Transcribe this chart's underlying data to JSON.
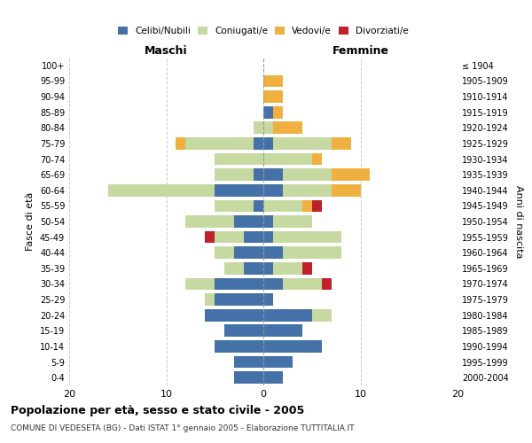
{
  "age_groups": [
    "0-4",
    "5-9",
    "10-14",
    "15-19",
    "20-24",
    "25-29",
    "30-34",
    "35-39",
    "40-44",
    "45-49",
    "50-54",
    "55-59",
    "60-64",
    "65-69",
    "70-74",
    "75-79",
    "80-84",
    "85-89",
    "90-94",
    "95-99",
    "100+"
  ],
  "birth_years": [
    "2000-2004",
    "1995-1999",
    "1990-1994",
    "1985-1989",
    "1980-1984",
    "1975-1979",
    "1970-1974",
    "1965-1969",
    "1960-1964",
    "1955-1959",
    "1950-1954",
    "1945-1949",
    "1940-1944",
    "1935-1939",
    "1930-1934",
    "1925-1929",
    "1920-1924",
    "1915-1919",
    "1910-1914",
    "1905-1909",
    "≤ 1904"
  ],
  "maschi": {
    "celibi": [
      3,
      3,
      5,
      4,
      6,
      5,
      5,
      2,
      3,
      2,
      3,
      1,
      5,
      1,
      0,
      1,
      0,
      0,
      0,
      0,
      0
    ],
    "coniugati": [
      0,
      0,
      0,
      0,
      0,
      1,
      3,
      2,
      2,
      3,
      5,
      4,
      11,
      4,
      5,
      7,
      1,
      0,
      0,
      0,
      0
    ],
    "vedovi": [
      0,
      0,
      0,
      0,
      0,
      0,
      0,
      0,
      0,
      0,
      0,
      0,
      0,
      0,
      0,
      1,
      0,
      0,
      0,
      0,
      0
    ],
    "divorziati": [
      0,
      0,
      0,
      0,
      0,
      0,
      0,
      0,
      0,
      1,
      0,
      0,
      0,
      0,
      0,
      0,
      0,
      0,
      0,
      0,
      0
    ]
  },
  "femmine": {
    "nubili": [
      2,
      3,
      6,
      4,
      5,
      1,
      2,
      1,
      2,
      1,
      1,
      0,
      2,
      2,
      0,
      1,
      0,
      1,
      0,
      0,
      0
    ],
    "coniugate": [
      0,
      0,
      0,
      0,
      2,
      0,
      4,
      3,
      6,
      7,
      4,
      4,
      5,
      5,
      5,
      6,
      1,
      0,
      0,
      0,
      0
    ],
    "vedove": [
      0,
      0,
      0,
      0,
      0,
      0,
      0,
      0,
      0,
      0,
      0,
      1,
      3,
      4,
      1,
      2,
      3,
      1,
      2,
      2,
      0
    ],
    "divorziate": [
      0,
      0,
      0,
      0,
      0,
      0,
      1,
      1,
      0,
      0,
      0,
      1,
      0,
      0,
      0,
      0,
      0,
      0,
      0,
      0,
      0
    ]
  },
  "colors": {
    "celibi_nubili": "#4472a8",
    "coniugati_e": "#c5d9a0",
    "vedovi_e": "#f0b040",
    "divorziati_e": "#c0202a"
  },
  "xlim": 20,
  "title": "Popolazione per età, sesso e stato civile - 2005",
  "subtitle": "COMUNE DI VEDESETA (BG) - Dati ISTAT 1° gennaio 2005 - Elaborazione TUTTITALIA.IT",
  "ylabel_left": "Fasce di età",
  "ylabel_right": "Anni di nascita",
  "xlabel_maschi": "Maschi",
  "xlabel_femmine": "Femmine",
  "bg_color": "#ffffff",
  "grid_color": "#cccccc"
}
